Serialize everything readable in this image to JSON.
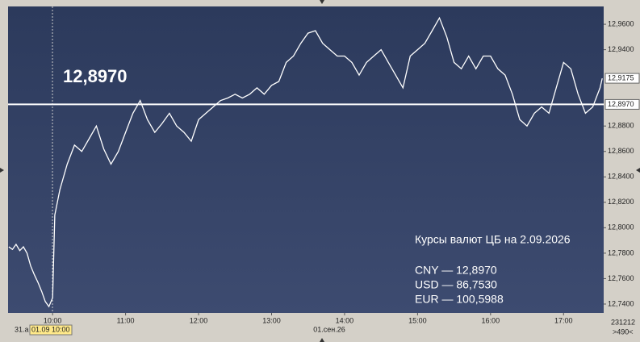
{
  "chart_data": {
    "type": "line",
    "color": "#ffffff",
    "x": [
      9.4,
      9.45,
      9.5,
      9.55,
      9.6,
      9.65,
      9.7,
      9.75,
      9.8,
      9.85,
      9.9,
      9.95,
      10.0,
      10.03,
      10.1,
      10.2,
      10.3,
      10.4,
      10.5,
      10.6,
      10.7,
      10.8,
      10.9,
      11.0,
      11.1,
      11.2,
      11.3,
      11.4,
      11.5,
      11.6,
      11.7,
      11.8,
      11.9,
      12.0,
      12.1,
      12.2,
      12.3,
      12.4,
      12.5,
      12.6,
      12.7,
      12.8,
      12.9,
      13.0,
      13.1,
      13.2,
      13.3,
      13.4,
      13.5,
      13.6,
      13.7,
      13.8,
      13.9,
      14.0,
      14.1,
      14.2,
      14.3,
      14.4,
      14.5,
      14.6,
      14.7,
      14.8,
      14.9,
      15.0,
      15.1,
      15.2,
      15.3,
      15.4,
      15.5,
      15.6,
      15.7,
      15.8,
      15.9,
      16.0,
      16.1,
      16.2,
      16.3,
      16.4,
      16.5,
      16.6,
      16.7,
      16.8,
      16.9,
      17.0,
      17.1,
      17.2,
      17.3,
      17.4,
      17.5,
      17.53
    ],
    "values": [
      12.785,
      12.783,
      12.787,
      12.782,
      12.785,
      12.78,
      12.77,
      12.763,
      12.757,
      12.75,
      12.742,
      12.738,
      12.745,
      12.81,
      12.83,
      12.85,
      12.865,
      12.86,
      12.87,
      12.88,
      12.862,
      12.85,
      12.86,
      12.875,
      12.89,
      12.9,
      12.885,
      12.875,
      12.882,
      12.89,
      12.88,
      12.875,
      12.868,
      12.885,
      12.89,
      12.895,
      12.9,
      12.902,
      12.905,
      12.902,
      12.905,
      12.91,
      12.905,
      12.912,
      12.915,
      12.93,
      12.935,
      12.945,
      12.953,
      12.955,
      12.945,
      12.94,
      12.935,
      12.935,
      12.93,
      12.92,
      12.93,
      12.935,
      12.94,
      12.93,
      12.92,
      12.91,
      12.935,
      12.94,
      12.945,
      12.955,
      12.965,
      12.95,
      12.93,
      12.925,
      12.935,
      12.925,
      12.935,
      12.935,
      12.925,
      12.92,
      12.905,
      12.885,
      12.88,
      12.89,
      12.895,
      12.89,
      12.91,
      12.93,
      12.925,
      12.905,
      12.89,
      12.895,
      12.91,
      12.9175
    ],
    "xlim": [
      9.39,
      17.55
    ],
    "xticks": [
      {
        "value": 10,
        "label": "10:00"
      },
      {
        "value": 11,
        "label": "11:00"
      },
      {
        "value": 12,
        "label": "12:00"
      },
      {
        "value": 13,
        "label": "13:00"
      },
      {
        "value": 14,
        "label": "14:00"
      },
      {
        "value": 15,
        "label": "15:00"
      },
      {
        "value": 16,
        "label": "16:00"
      },
      {
        "value": 17,
        "label": "17:00"
      }
    ],
    "ylim": [
      12.733,
      12.974
    ],
    "yticks": [
      {
        "value": 12.96,
        "label": "12,9600"
      },
      {
        "value": 12.94,
        "label": "12,9400"
      },
      {
        "value": 12.88,
        "label": "12,8800"
      },
      {
        "value": 12.86,
        "label": "12,8600"
      },
      {
        "value": 12.84,
        "label": "12,8400"
      },
      {
        "value": 12.82,
        "label": "12,8200"
      },
      {
        "value": 12.8,
        "label": "12,8000"
      },
      {
        "value": 12.78,
        "label": "12,7800"
      },
      {
        "value": 12.76,
        "label": "12,7600"
      },
      {
        "value": 12.74,
        "label": "12,7400"
      }
    ],
    "reference": {
      "value": 12.897,
      "label": "12,8970"
    },
    "last": {
      "value": 12.9175,
      "label": "12,9175"
    },
    "left_date": "31.а",
    "date_marker": "01.09 10:00",
    "date_label": "01.сен.26",
    "counter": "231212",
    "zoom": ">490<",
    "info": {
      "title": "Курсы валют ЦБ на 2.09.2026",
      "lines": [
        "CNY — 12,8970",
        "USD — 86,7530",
        "EUR — 100,5988"
      ]
    }
  }
}
